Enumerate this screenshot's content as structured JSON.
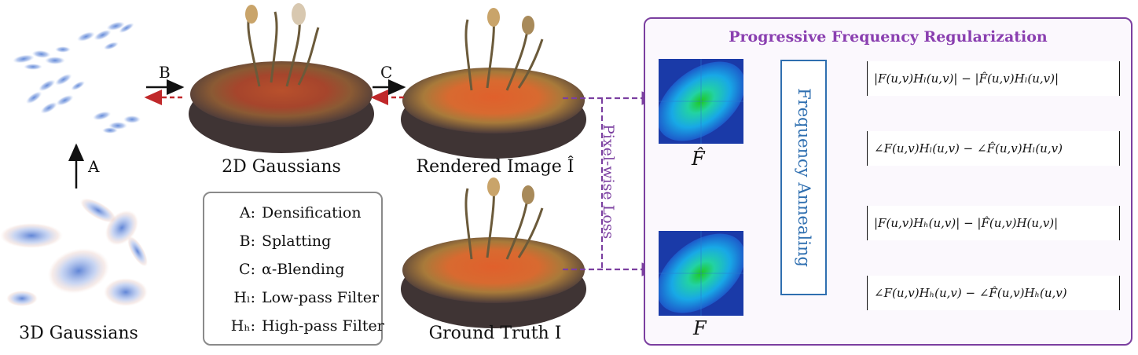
{
  "captions": {
    "gauss3d": "3D Gaussians",
    "gauss2d": "2D Gaussians",
    "rendered": "Rendered Image Î",
    "ground_truth": "Ground Truth I"
  },
  "arrows": {
    "a": "A",
    "b": "B",
    "c": "C"
  },
  "legend": [
    {
      "key": "A:",
      "desc": "Densification"
    },
    {
      "key": "B:",
      "desc": "Splatting"
    },
    {
      "key": "C:",
      "desc": "α-Blending"
    },
    {
      "key": "Hₗ:",
      "desc": "Low-pass Filter"
    },
    {
      "key": "Hₕ:",
      "desc": "High-pass Filter"
    }
  ],
  "loss_label": "Pixel-wise Loss",
  "panel": {
    "title": "Progressive Frequency Regularization",
    "annealing": "Frequency Annealing",
    "spectrum_hat": "F̂",
    "spectrum": "F"
  },
  "formulas": [
    "|F(u,v)Hₗ(u,v)| − |F̂(u,v)Hₗ(u,v)|",
    "∠F(u,v)Hₗ(u,v) − ∠F̂(u,v)Hₗ(u,v)",
    "|F(u,v)Hₕ(u,v)| − |F̂(u,v)H(u,v)|",
    "∠F(u,v)Hₕ(u,v) − ∠F̂(u,v)Hₕ(u,v)"
  ],
  "colors": {
    "purple": "#7b3fa0",
    "red_dashed": "#c0282a",
    "blue": "#2f6fb0"
  }
}
